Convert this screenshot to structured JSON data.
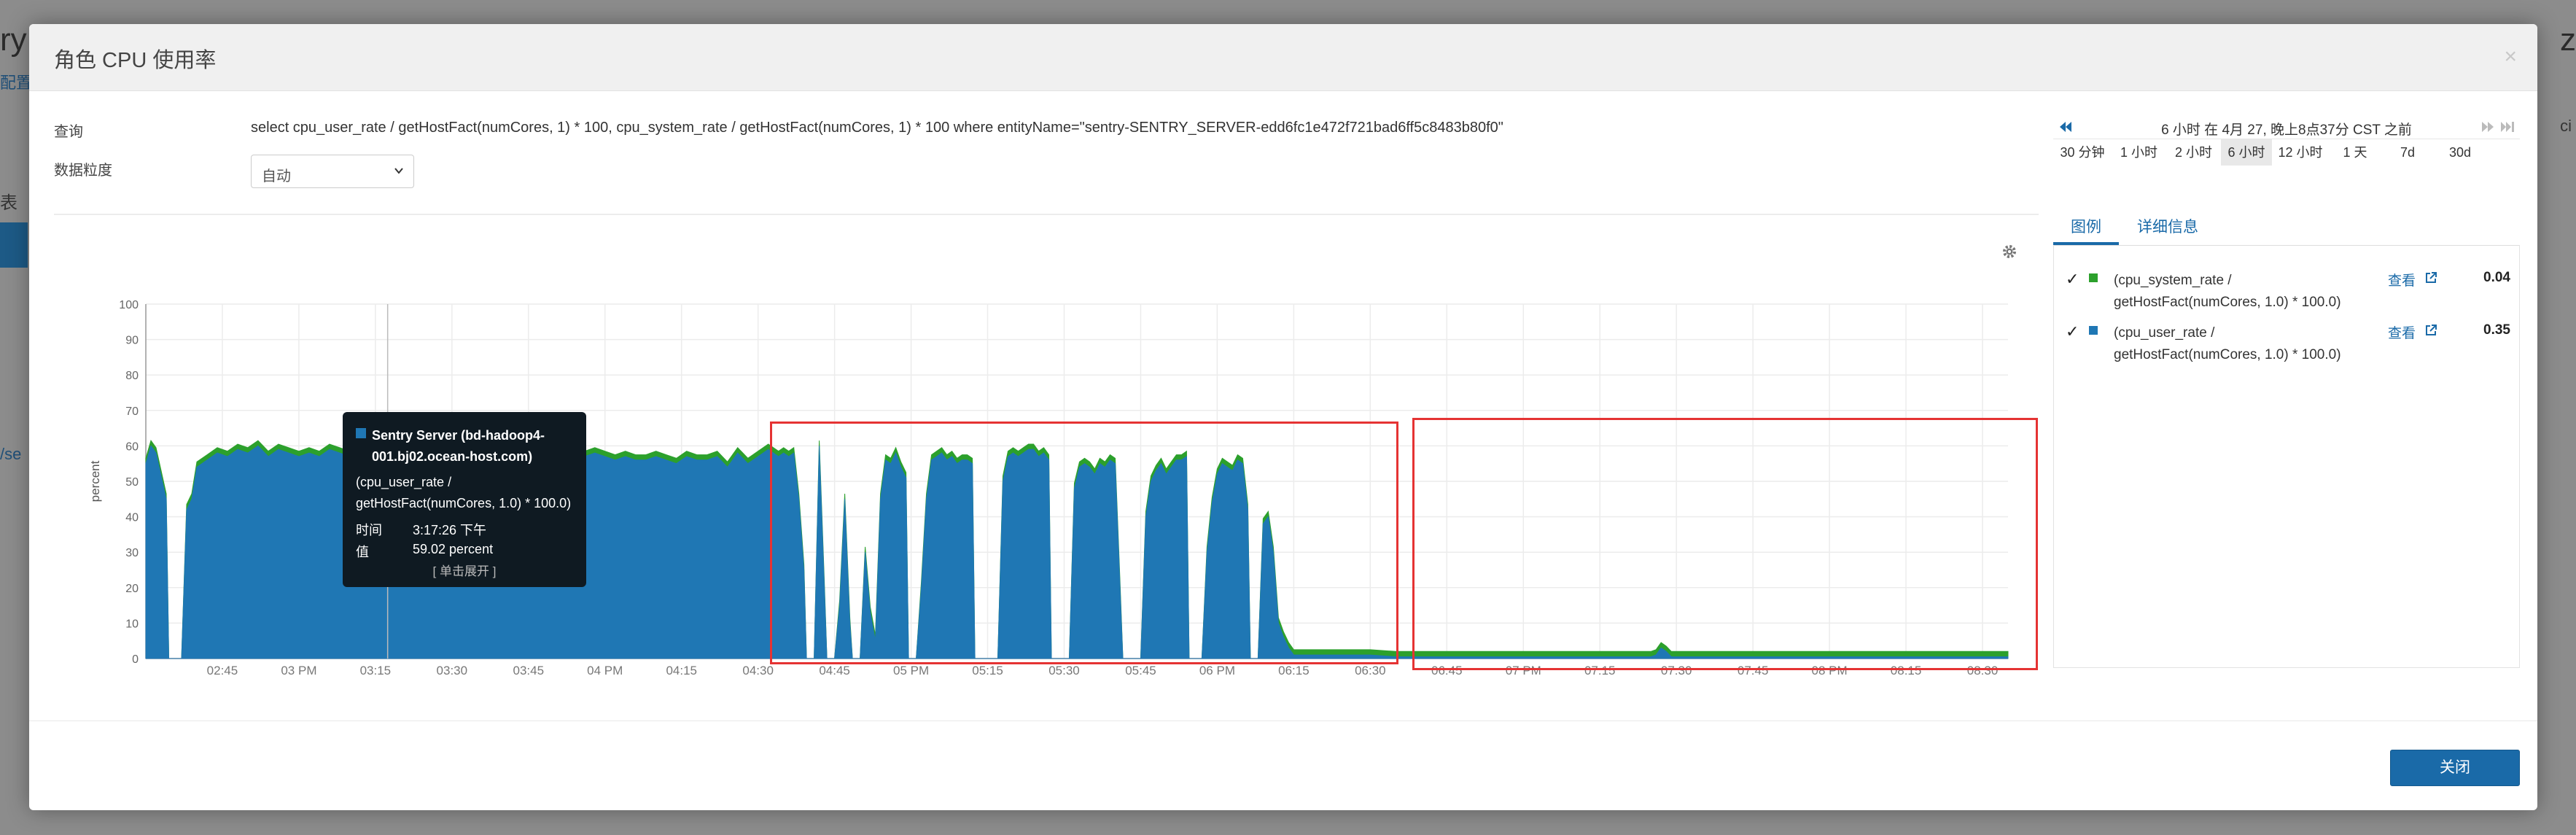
{
  "background": {
    "title_fragment": "ry C",
    "link_fragment": "配置",
    "label_fragment": "表",
    "path_fragment": "/se",
    "right_fragment": "z",
    "right_fragment2": "ci"
  },
  "modal": {
    "title": "角色 CPU 使用率",
    "close_symbol": "×",
    "query_label": "查询",
    "query_text": "select cpu_user_rate / getHostFact(numCores, 1) * 100, cpu_system_rate / getHostFact(numCores, 1) * 100 where entityName=\"sentry-SENTRY_SERVER-edd6fc1e472f721bad6ff5c8483b80f0\"",
    "granularity_label": "数据粒度",
    "granularity_value": "自动",
    "close_button": "关闭"
  },
  "time_range": {
    "label": "6 小时 在 4月 27, 晚上8点37分 CST 之前",
    "buttons": [
      "30 分钟",
      "1 小时",
      "2 小时",
      "6 小时",
      "12 小时",
      "1 天",
      "7d",
      "30d"
    ],
    "active": "6 小时"
  },
  "tabs": {
    "legend": "图例",
    "details": "详细信息"
  },
  "legend": [
    {
      "check": "✓",
      "name_line1": "(cpu_system_rate /",
      "name_line2": "getHostFact(numCores, 1.0) * 100.0)",
      "view": "查看",
      "value": "0.04",
      "color": "#2ca02c"
    },
    {
      "check": "✓",
      "name_line1": "(cpu_user_rate /",
      "name_line2": "getHostFact(numCores, 1.0) * 100.0)",
      "view": "查看",
      "value": "0.35",
      "color": "#1f77b4"
    }
  ],
  "tooltip": {
    "series_line1": "Sentry Server (bd-hadoop4-",
    "series_line2": "001.bj02.ocean-host.com)",
    "metric_line1": "(cpu_user_rate /",
    "metric_line2": "getHostFact(numCores, 1.0) * 100.0)",
    "time_label": "时间",
    "time_value": "3:17:26 下午",
    "value_label": "值",
    "value_value": "59.02 percent",
    "expand": "[ 单击展开 ]"
  },
  "chart_data": {
    "type": "area",
    "title": "",
    "xlabel": "",
    "ylabel": "percent",
    "ylim": [
      0,
      100
    ],
    "yticks": [
      0,
      10,
      20,
      30,
      40,
      50,
      60,
      70,
      80,
      90,
      100
    ],
    "xticks": [
      "02:45",
      "03 PM",
      "03:15",
      "03:30",
      "03:45",
      "04 PM",
      "04:15",
      "04:30",
      "04:45",
      "05 PM",
      "05:15",
      "05:30",
      "05:45",
      "06 PM",
      "06:15",
      "06:30",
      "06:45",
      "07 PM",
      "07:15",
      "07:30",
      "07:45",
      "08 PM",
      "08:15",
      "08:30"
    ],
    "x_minutes_start": 150,
    "x_minutes_end": 515,
    "xtick_minutes": [
      165,
      180,
      195,
      210,
      225,
      240,
      255,
      270,
      285,
      300,
      315,
      330,
      345,
      360,
      375,
      390,
      405,
      420,
      435,
      450,
      465,
      480,
      495,
      510
    ],
    "series": [
      {
        "name": "(cpu_user_rate / getHostFact(numCores, 1.0) * 100.0)",
        "color": "#1f77b4",
        "points": [
          [
            150,
            55
          ],
          [
            151,
            60
          ],
          [
            152,
            58
          ],
          [
            154,
            45
          ],
          [
            154.5,
            0
          ],
          [
            157,
            0
          ],
          [
            158,
            42
          ],
          [
            159,
            45
          ],
          [
            160,
            54
          ],
          [
            162,
            56
          ],
          [
            164,
            58
          ],
          [
            166,
            57
          ],
          [
            168,
            59
          ],
          [
            170,
            58
          ],
          [
            172,
            60
          ],
          [
            174,
            57
          ],
          [
            176,
            59
          ],
          [
            178,
            58
          ],
          [
            180,
            57
          ],
          [
            182,
            58
          ],
          [
            184,
            57
          ],
          [
            186,
            59
          ],
          [
            188,
            58
          ],
          [
            190,
            57
          ],
          [
            192,
            59
          ],
          [
            194,
            58
          ],
          [
            196,
            59
          ],
          [
            198,
            58
          ],
          [
            200,
            57
          ],
          [
            202,
            58
          ],
          [
            204,
            56
          ],
          [
            206,
            57
          ],
          [
            208,
            59
          ],
          [
            210,
            58
          ],
          [
            212,
            57
          ],
          [
            214,
            56
          ],
          [
            216,
            58
          ],
          [
            218,
            56
          ],
          [
            220,
            58
          ],
          [
            222,
            57
          ],
          [
            224,
            57
          ],
          [
            226,
            58
          ],
          [
            228,
            56
          ],
          [
            230,
            57
          ],
          [
            232,
            56
          ],
          [
            234,
            57
          ],
          [
            236,
            57
          ],
          [
            238,
            58
          ],
          [
            240,
            57
          ],
          [
            242,
            56
          ],
          [
            244,
            57
          ],
          [
            246,
            56
          ],
          [
            248,
            56
          ],
          [
            250,
            57
          ],
          [
            252,
            56
          ],
          [
            254,
            55
          ],
          [
            256,
            57
          ],
          [
            258,
            56
          ],
          [
            260,
            56
          ],
          [
            262,
            57
          ],
          [
            264,
            54
          ],
          [
            266,
            58
          ],
          [
            268,
            55
          ],
          [
            270,
            57
          ],
          [
            272,
            59
          ],
          [
            274,
            57
          ],
          [
            275,
            58
          ],
          [
            276,
            57
          ],
          [
            277,
            58
          ],
          [
            278,
            45
          ],
          [
            279,
            25
          ],
          [
            279.5,
            0
          ],
          [
            281,
            0
          ],
          [
            282,
            60
          ],
          [
            283,
            20
          ],
          [
            283.5,
            0
          ],
          [
            285,
            0
          ],
          [
            286,
            15
          ],
          [
            287,
            45
          ],
          [
            288,
            10
          ],
          [
            288.5,
            0
          ],
          [
            290,
            0
          ],
          [
            291,
            30
          ],
          [
            292,
            13
          ],
          [
            293,
            5
          ],
          [
            294,
            45
          ],
          [
            295,
            56
          ],
          [
            296,
            55
          ],
          [
            297,
            58
          ],
          [
            298,
            54
          ],
          [
            299,
            51
          ],
          [
            299.5,
            0
          ],
          [
            301,
            0
          ],
          [
            302,
            20
          ],
          [
            303,
            45
          ],
          [
            304,
            56
          ],
          [
            305,
            57
          ],
          [
            306,
            58
          ],
          [
            307,
            56
          ],
          [
            308,
            57
          ],
          [
            309,
            55
          ],
          [
            310,
            56
          ],
          [
            311,
            56
          ],
          [
            312,
            55
          ],
          [
            312.5,
            0
          ],
          [
            317,
            0
          ],
          [
            318,
            50
          ],
          [
            319,
            57
          ],
          [
            320,
            58
          ],
          [
            321,
            57
          ],
          [
            322,
            58
          ],
          [
            323,
            59
          ],
          [
            324,
            59
          ],
          [
            325,
            57
          ],
          [
            326,
            58
          ],
          [
            327,
            56
          ],
          [
            327.5,
            0
          ],
          [
            331,
            0
          ],
          [
            332,
            48
          ],
          [
            333,
            54
          ],
          [
            334,
            55
          ],
          [
            335,
            54
          ],
          [
            336,
            52
          ],
          [
            337,
            55
          ],
          [
            338,
            54
          ],
          [
            339,
            56
          ],
          [
            340,
            55
          ],
          [
            341,
            18
          ],
          [
            341.5,
            0
          ],
          [
            345,
            0
          ],
          [
            346,
            40
          ],
          [
            347,
            50
          ],
          [
            348,
            53
          ],
          [
            349,
            55
          ],
          [
            350,
            52
          ],
          [
            351,
            54
          ],
          [
            352,
            56
          ],
          [
            353,
            56
          ],
          [
            354,
            57
          ],
          [
            354.5,
            0
          ],
          [
            357,
            0
          ],
          [
            358,
            30
          ],
          [
            359,
            44
          ],
          [
            360,
            52
          ],
          [
            361,
            55
          ],
          [
            362,
            54
          ],
          [
            363,
            53
          ],
          [
            364,
            56
          ],
          [
            365,
            55
          ],
          [
            366,
            42
          ],
          [
            366.5,
            0
          ],
          [
            368,
            0
          ],
          [
            369,
            38
          ],
          [
            370,
            40
          ],
          [
            371,
            30
          ],
          [
            372,
            10
          ],
          [
            373,
            6
          ],
          [
            374,
            3
          ],
          [
            375,
            1
          ],
          [
            376,
            1
          ],
          [
            378,
            1
          ],
          [
            380,
            1
          ],
          [
            385,
            1
          ],
          [
            390,
            1
          ],
          [
            395,
            0.5
          ],
          [
            400,
            0.5
          ],
          [
            405,
            0.5
          ],
          [
            410,
            0.5
          ],
          [
            415,
            0.5
          ],
          [
            420,
            0.5
          ],
          [
            425,
            0.5
          ],
          [
            430,
            0.5
          ],
          [
            435,
            0.5
          ],
          [
            440,
            0.5
          ],
          [
            445,
            0.5
          ],
          [
            446,
            1
          ],
          [
            447,
            3
          ],
          [
            448,
            2
          ],
          [
            449,
            0.5
          ],
          [
            455,
            0.5
          ],
          [
            460,
            0.5
          ],
          [
            465,
            0.5
          ],
          [
            470,
            0.5
          ],
          [
            475,
            0.5
          ],
          [
            480,
            0.5
          ],
          [
            485,
            0.5
          ],
          [
            490,
            0.5
          ],
          [
            495,
            0.5
          ],
          [
            500,
            0.5
          ],
          [
            505,
            0.5
          ],
          [
            510,
            0.5
          ],
          [
            515,
            0.5
          ]
        ]
      },
      {
        "name": "(cpu_system_rate / getHostFact(numCores, 1.0) * 100.0)",
        "color": "#2ca02c",
        "offset": 1.5
      }
    ]
  }
}
